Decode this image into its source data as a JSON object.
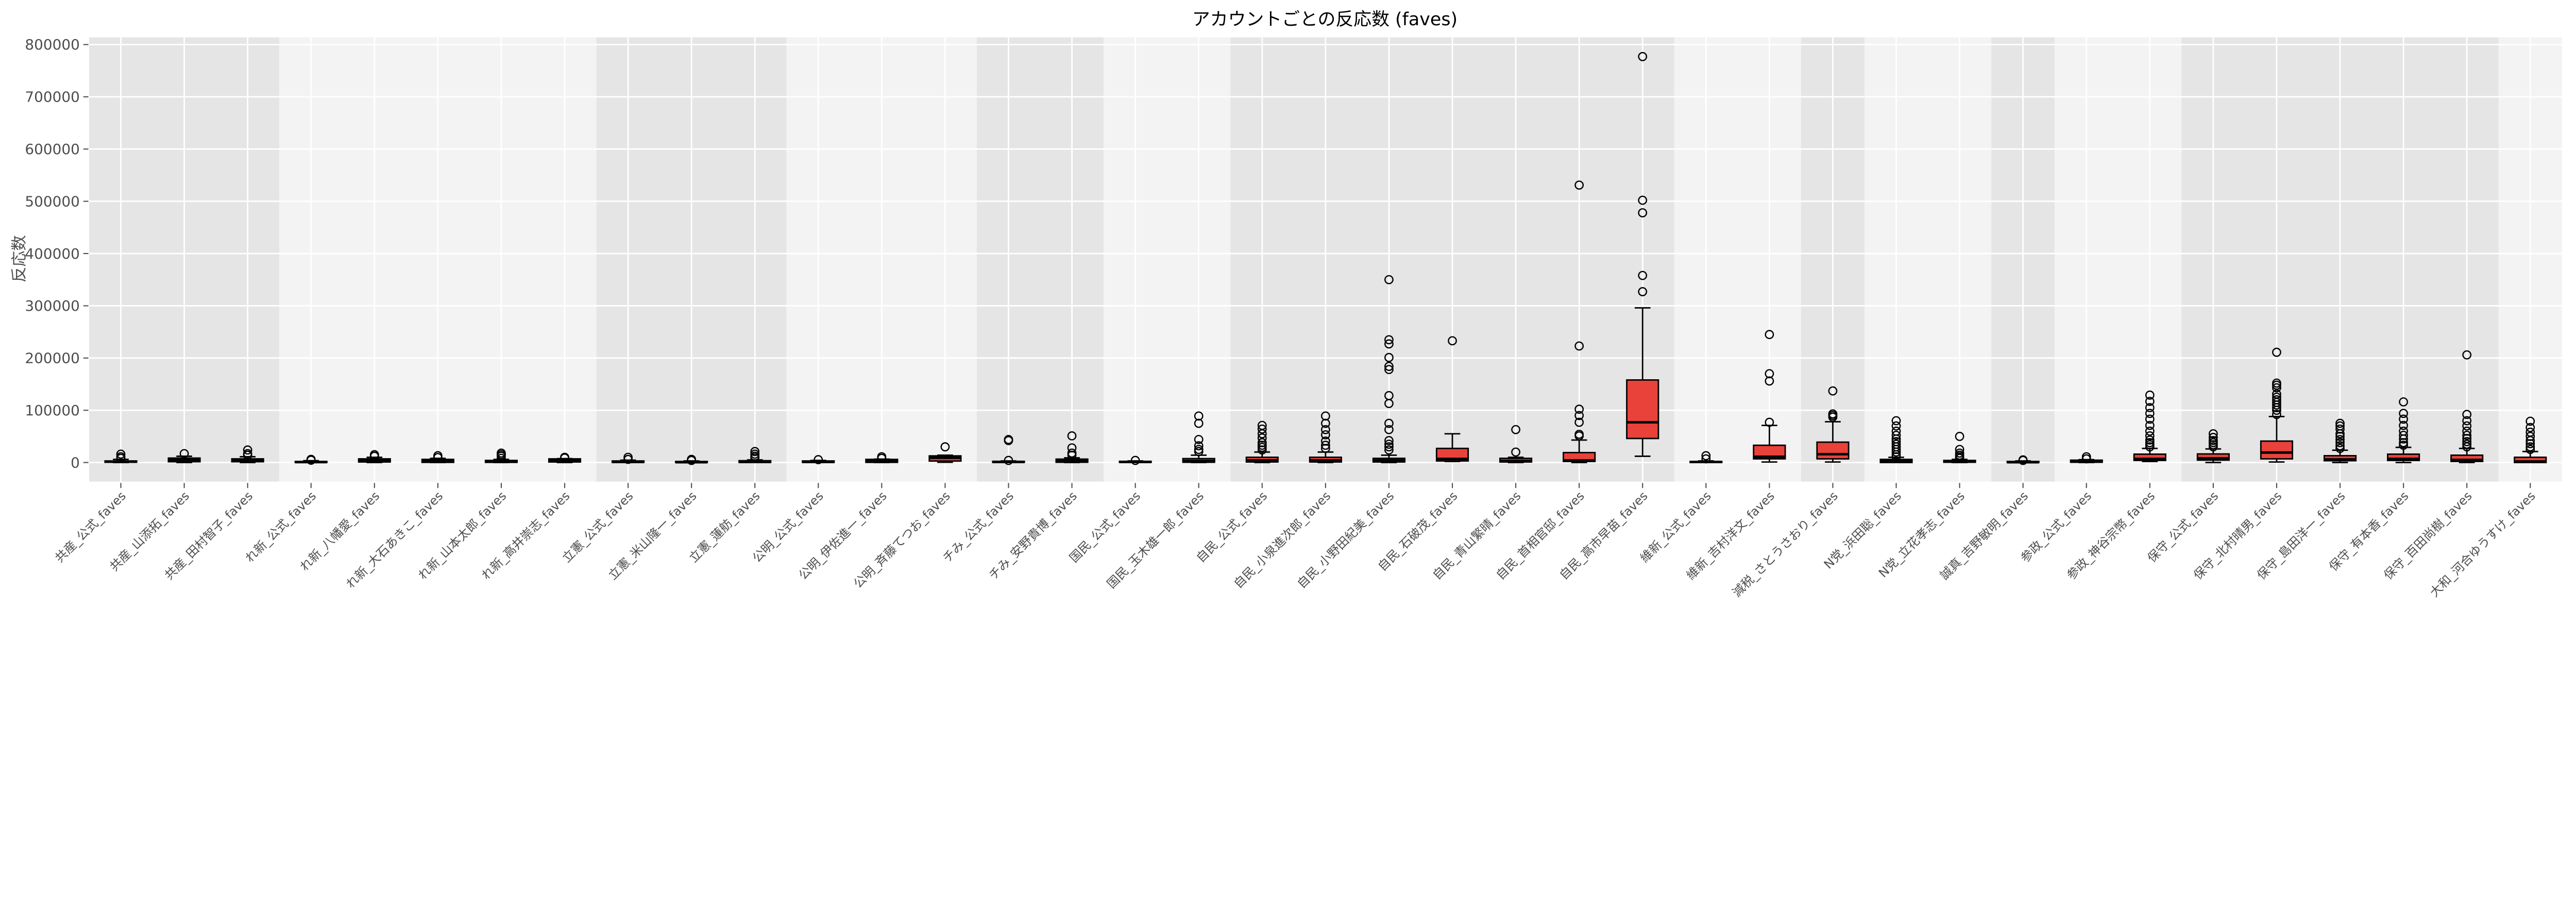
{
  "chart_data": {
    "type": "box",
    "title": "アカウントごとの反応数 (faves)",
    "xlabel": "",
    "ylabel": "反応数",
    "ylim": [
      0,
      800000
    ],
    "yticks": [
      0,
      100000,
      200000,
      300000,
      400000,
      500000,
      600000,
      700000,
      800000
    ],
    "grid": true,
    "colors": {
      "box_fill": "#e8423a",
      "band_dark": "#e5e5e5",
      "band_light": "#f3f3f3",
      "grid": "#ffffff",
      "line": "#000000"
    },
    "bands": [
      {
        "party": "共産",
        "count": 3,
        "shade": "dark"
      },
      {
        "party": "れ新",
        "count": 5,
        "shade": "light"
      },
      {
        "party": "立憲",
        "count": 3,
        "shade": "dark"
      },
      {
        "party": "公明",
        "count": 3,
        "shade": "light"
      },
      {
        "party": "チみ",
        "count": 2,
        "shade": "dark"
      },
      {
        "party": "国民",
        "count": 2,
        "shade": "light"
      },
      {
        "party": "自民",
        "count": 7,
        "shade": "dark"
      },
      {
        "party": "維新",
        "count": 2,
        "shade": "light"
      },
      {
        "party": "減税",
        "count": 1,
        "shade": "dark"
      },
      {
        "party": "N党",
        "count": 2,
        "shade": "light"
      },
      {
        "party": "誠真",
        "count": 1,
        "shade": "dark"
      },
      {
        "party": "参政",
        "count": 2,
        "shade": "light"
      },
      {
        "party": "保守",
        "count": 5,
        "shade": "dark"
      },
      {
        "party": "大和",
        "count": 1,
        "shade": "light"
      }
    ],
    "series": [
      {
        "label": "共産_公式_faves",
        "whisker_low": 0,
        "q1": 500,
        "median": 1500,
        "q3": 3000,
        "whisker_high": 6000,
        "outliers": [
          8000,
          11000,
          16000
        ]
      },
      {
        "label": "共産_山添拓_faves",
        "whisker_low": 0,
        "q1": 1500,
        "median": 5000,
        "q3": 8500,
        "whisker_high": 12000,
        "outliers": [
          17000
        ]
      },
      {
        "label": "共産_田村智子_faves",
        "whisker_low": 0,
        "q1": 1500,
        "median": 4500,
        "q3": 7000,
        "whisker_high": 11000,
        "outliers": [
          14000,
          17000,
          24000
        ]
      },
      {
        "label": "れ新_公式_faves",
        "whisker_low": 0,
        "q1": 200,
        "median": 800,
        "q3": 2000,
        "whisker_high": 3500,
        "outliers": [
          4500,
          6000
        ]
      },
      {
        "label": "れ新_八幡愛_faves",
        "whisker_low": 0,
        "q1": 1000,
        "median": 4000,
        "q3": 7000,
        "whisker_high": 10000,
        "outliers": [
          12000,
          15000
        ]
      },
      {
        "label": "れ新_大石あきこ_faves",
        "whisker_low": 0,
        "q1": 300,
        "median": 3000,
        "q3": 6000,
        "whisker_high": 8000,
        "outliers": [
          9500,
          13000
        ]
      },
      {
        "label": "れ新_山本太郎_faves",
        "whisker_low": 0,
        "q1": 300,
        "median": 2000,
        "q3": 4000,
        "whisker_high": 6000,
        "outliers": [
          8000,
          12000,
          15000,
          18000
        ]
      },
      {
        "label": "れ新_高井崇志_faves",
        "whisker_low": 0,
        "q1": 1000,
        "median": 4000,
        "q3": 7000,
        "whisker_high": 7500,
        "outliers": [
          8500,
          10000
        ]
      },
      {
        "label": "立憲_公式_faves",
        "whisker_low": 0,
        "q1": 200,
        "median": 1000,
        "q3": 3000,
        "whisker_high": 4500,
        "outliers": [
          6000,
          10000
        ]
      },
      {
        "label": "立憲_米山隆一_faves",
        "whisker_low": 0,
        "q1": 100,
        "median": 500,
        "q3": 2000,
        "whisker_high": 3000,
        "outliers": [
          4000,
          6000
        ]
      },
      {
        "label": "立憲_蓮舫_faves",
        "whisker_low": 0,
        "q1": 300,
        "median": 1000,
        "q3": 3500,
        "whisker_high": 5000,
        "outliers": [
          9000,
          12000,
          16000,
          21000
        ]
      },
      {
        "label": "公明_公式_faves",
        "whisker_low": 0,
        "q1": 300,
        "median": 1000,
        "q3": 3000,
        "whisker_high": 4000,
        "outliers": [
          5500
        ]
      },
      {
        "label": "公明_伊佐進一_faves",
        "whisker_low": 0,
        "q1": 300,
        "median": 3000,
        "q3": 6000,
        "whisker_high": 6500,
        "outliers": [
          8000,
          11000
        ]
      },
      {
        "label": "公明_斉藤てつお_faves",
        "whisker_low": 500,
        "q1": 2800,
        "median": 9000,
        "q3": 12700,
        "whisker_high": 14000,
        "outliers": [
          30000
        ]
      },
      {
        "label": "チみ_公式_faves",
        "whisker_low": 0,
        "q1": 300,
        "median": 1000,
        "q3": 2300,
        "whisker_high": 3000,
        "outliers": [
          4000,
          42000,
          44000
        ]
      },
      {
        "label": "チみ_安野貴博_faves",
        "whisker_low": 0,
        "q1": 500,
        "median": 3000,
        "q3": 6500,
        "whisker_high": 9000,
        "outliers": [
          14000,
          18000,
          28000,
          51000
        ]
      },
      {
        "label": "国民_公式_faves",
        "whisker_low": 0,
        "q1": 300,
        "median": 1000,
        "q3": 2300,
        "whisker_high": 3000,
        "outliers": [
          4000
        ]
      },
      {
        "label": "国民_玉木雄一郎_faves",
        "whisker_low": 0,
        "q1": 500,
        "median": 3000,
        "q3": 7500,
        "whisker_high": 14000,
        "outliers": [
          21000,
          25000,
          32000,
          44000,
          75000,
          89000
        ]
      },
      {
        "label": "自民_公式_faves",
        "whisker_low": 0,
        "q1": 1000,
        "median": 4000,
        "q3": 10000,
        "whisker_high": 20000,
        "outliers": [
          24000,
          29000,
          33000,
          38000,
          47000,
          55000,
          64000,
          71000
        ]
      },
      {
        "label": "自民_小泉進次郎_faves",
        "whisker_low": 0,
        "q1": 1000,
        "median": 4000,
        "q3": 10000,
        "whisker_high": 20000,
        "outliers": [
          27000,
          33000,
          41000,
          53000,
          63000,
          75000,
          89000
        ]
      },
      {
        "label": "自民_小野田紀美_faves",
        "whisker_low": 0,
        "q1": 1000,
        "median": 4000,
        "q3": 8000,
        "whisker_high": 14000,
        "outliers": [
          24000,
          30000,
          35000,
          42000,
          63000,
          75000,
          113000,
          128000,
          178000,
          184000,
          201000,
          227000,
          235000,
          350000
        ]
      },
      {
        "label": "自民_石破茂_faves",
        "whisker_low": 2000,
        "q1": 3000,
        "median": 7000,
        "q3": 27000,
        "whisker_high": 55000,
        "outliers": [
          233000
        ]
      },
      {
        "label": "自民_青山繁晴_faves",
        "whisker_low": 0,
        "q1": 1000,
        "median": 3000,
        "q3": 8000,
        "whisker_high": 10000,
        "outliers": [
          20000,
          63000
        ]
      },
      {
        "label": "自民_首相官邸_faves",
        "whisker_low": 0,
        "q1": 2000,
        "median": 4000,
        "q3": 19000,
        "whisker_high": 43000,
        "outliers": [
          51000,
          54000,
          77000,
          90000,
          102000,
          223000,
          531000
        ]
      },
      {
        "label": "自民_高市早苗_faves",
        "whisker_low": 12000,
        "q1": 46000,
        "median": 77000,
        "q3": 158000,
        "whisker_high": 296000,
        "outliers": [
          327000,
          358000,
          478000,
          502000,
          777000
        ]
      },
      {
        "label": "維新_公式_faves",
        "whisker_low": 0,
        "q1": 0,
        "median": 1000,
        "q3": 2000,
        "whisker_high": 3000,
        "outliers": [
          7000,
          13000
        ]
      },
      {
        "label": "維新_吉村洋文_faves",
        "whisker_low": 1000,
        "q1": 7000,
        "median": 11000,
        "q3": 33000,
        "whisker_high": 71000,
        "outliers": [
          77000,
          156000,
          170000,
          245000
        ]
      },
      {
        "label": "減税_さとうさおり_faves",
        "whisker_low": 1000,
        "q1": 7000,
        "median": 16000,
        "q3": 39000,
        "whisker_high": 78000,
        "outliers": [
          87000,
          90000,
          93000,
          137000
        ]
      },
      {
        "label": "N党_浜田聡_faves",
        "whisker_low": 0,
        "q1": 0,
        "median": 3000,
        "q3": 6000,
        "whisker_high": 10000,
        "outliers": [
          11000,
          15000,
          20000,
          25000,
          30000,
          35000,
          40000,
          45000,
          52000,
          60000,
          70000,
          80000
        ]
      },
      {
        "label": "N党_立花孝志_faves",
        "whisker_low": 0,
        "q1": 500,
        "median": 2000,
        "q3": 4000,
        "whisker_high": 6000,
        "outliers": [
          8000,
          11000,
          14000,
          18000,
          25000,
          50000
        ]
      },
      {
        "label": "誠真_吉野敏明_faves",
        "whisker_low": 0,
        "q1": 100,
        "median": 500,
        "q3": 2000,
        "whisker_high": 3000,
        "outliers": [
          4000,
          5000
        ]
      },
      {
        "label": "参政_公式_faves",
        "whisker_low": 0,
        "q1": 500,
        "median": 2000,
        "q3": 4500,
        "whisker_high": 5500,
        "outliers": [
          7000,
          11000
        ]
      },
      {
        "label": "参政_神谷宗幣_faves",
        "whisker_low": 2000,
        "q1": 4000,
        "median": 7000,
        "q3": 16000,
        "whisker_high": 27000,
        "outliers": [
          30000,
          34000,
          38000,
          43000,
          51000,
          60000,
          71000,
          83000,
          94000,
          105000,
          117000,
          129000
        ]
      },
      {
        "label": "保守_公式_faves",
        "whisker_low": 0,
        "q1": 4600,
        "median": 8000,
        "q3": 16400,
        "whisker_high": 26000,
        "outliers": [
          30000,
          34000,
          38000,
          42000,
          48000,
          55000
        ]
      },
      {
        "label": "保守_北村晴男_faves",
        "whisker_low": 1000,
        "q1": 7000,
        "median": 19000,
        "q3": 41000,
        "whisker_high": 88000,
        "outliers": [
          92000,
          100000,
          105000,
          110000,
          115000,
          120000,
          125000,
          131000,
          143000,
          148000,
          152000,
          211000
        ]
      },
      {
        "label": "保守_島田洋一_faves",
        "whisker_low": 0,
        "q1": 3400,
        "median": 6000,
        "q3": 13000,
        "whisker_high": 23500,
        "outliers": [
          27000,
          32000,
          38000,
          44000,
          50000,
          55000,
          64000,
          70000,
          75000
        ]
      },
      {
        "label": "保守_有本香_faves",
        "whisker_low": 0,
        "q1": 4000,
        "median": 7000,
        "q3": 16000,
        "whisker_high": 29000,
        "outliers": [
          33000,
          38000,
          45000,
          52000,
          60000,
          71000,
          83000,
          94000,
          116000
        ]
      },
      {
        "label": "保守_百田尚樹_faves",
        "whisker_low": 0,
        "q1": 2000,
        "median": 5000,
        "q3": 14000,
        "whisker_high": 27000,
        "outliers": [
          30000,
          35000,
          40000,
          46000,
          52000,
          60000,
          70000,
          80000,
          92000,
          206000
        ]
      },
      {
        "label": "大和_河合ゆうすけ_faves",
        "whisker_low": 0,
        "q1": 0,
        "median": 2000,
        "q3": 10000,
        "whisker_high": 21000,
        "outliers": [
          25000,
          30000,
          36000,
          42000,
          50000,
          58000,
          67000,
          79000
        ]
      }
    ]
  }
}
